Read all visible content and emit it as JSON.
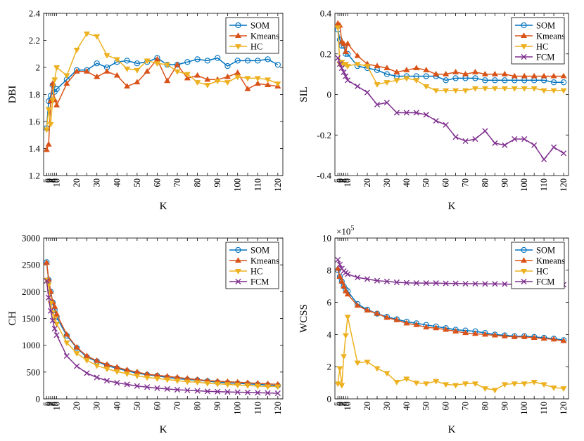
{
  "figure_title": "Clustering evaluation metrics vs K",
  "colors": {
    "SOM": "#0072BD",
    "Kmeans": "#D95319",
    "HC": "#EDB120",
    "FCM": "#7E2F8E"
  },
  "chart_data": [
    {
      "id": "dbi",
      "type": "line",
      "xlabel": "K",
      "ylabel": "DBI",
      "ylim": [
        1.2,
        2.4
      ],
      "grid": false,
      "yticks": [
        1.2,
        1.4,
        1.6,
        1.8,
        2.0,
        2.2,
        2.4
      ],
      "ytick_labels": [
        "1.2",
        "1.4",
        "1.6",
        "1.8",
        "2",
        "2.2",
        "2.4"
      ],
      "legend_position": "top-right",
      "series": [
        {
          "name": "SOM",
          "marker": "circle",
          "values": [
            1.55,
            1.75,
            1.79,
            1.87,
            1.82,
            1.84,
            1.91,
            1.98,
            1.98,
            2.03,
            2.0,
            2.04,
            2.05,
            2.03,
            2.04,
            2.07,
            2.02,
            2.02,
            2.04,
            2.06,
            2.05,
            2.07,
            2.01,
            2.05,
            2.05,
            2.05,
            2.06,
            2.02
          ]
        },
        {
          "name": "Kmeans",
          "marker": "triangle-up",
          "values": [
            1.39,
            1.43,
            1.75,
            1.88,
            1.76,
            1.72,
            1.88,
            1.97,
            1.97,
            1.93,
            1.97,
            1.94,
            1.86,
            1.89,
            1.97,
            2.06,
            1.9,
            2.02,
            1.92,
            1.94,
            1.91,
            1.91,
            1.93,
            1.96,
            1.84,
            1.88,
            1.87,
            1.86
          ]
        },
        {
          "name": "HC",
          "marker": "triangle-down",
          "values": [
            1.54,
            1.69,
            1.58,
            1.76,
            1.91,
            2.0,
            1.94,
            2.13,
            2.25,
            2.23,
            2.09,
            2.06,
            1.99,
            1.98,
            2.05,
            2.03,
            2.02,
            1.97,
            1.95,
            1.89,
            1.87,
            1.9,
            1.89,
            1.93,
            1.92,
            1.92,
            1.91,
            1.88
          ]
        }
      ]
    },
    {
      "id": "sil",
      "type": "line",
      "xlabel": "K",
      "ylabel": "SIL",
      "ylim": [
        -0.4,
        0.4
      ],
      "grid": false,
      "yticks": [
        -0.4,
        -0.2,
        0,
        0.2,
        0.4
      ],
      "ytick_labels": [
        "-0.4",
        "-0.2",
        "0",
        "0.2",
        "0.4"
      ],
      "legend_position": "top-right",
      "series": [
        {
          "name": "SOM",
          "marker": "circle",
          "values": [
            0.32,
            0.27,
            0.24,
            0.24,
            0.2,
            0.2,
            0.14,
            0.13,
            0.12,
            0.1,
            0.09,
            0.09,
            0.09,
            0.09,
            0.09,
            0.07,
            0.08,
            0.08,
            0.08,
            0.07,
            0.07,
            0.07,
            0.07,
            0.07,
            0.07,
            0.07,
            0.06,
            0.06
          ]
        },
        {
          "name": "Kmeans",
          "marker": "triangle-up",
          "values": [
            0.35,
            0.34,
            0.26,
            0.25,
            0.21,
            0.25,
            0.19,
            0.15,
            0.14,
            0.13,
            0.11,
            0.12,
            0.13,
            0.12,
            0.1,
            0.1,
            0.11,
            0.1,
            0.11,
            0.1,
            0.1,
            0.1,
            0.09,
            0.09,
            0.09,
            0.09,
            0.09,
            0.09
          ]
        },
        {
          "name": "HC",
          "marker": "triangle-down",
          "values": [
            0.33,
            0.15,
            0.16,
            0.15,
            0.15,
            0.14,
            0.15,
            0.14,
            0.05,
            0.06,
            0.07,
            0.08,
            0.07,
            0.04,
            0.02,
            0.02,
            0.02,
            0.02,
            0.03,
            0.03,
            0.03,
            0.03,
            0.03,
            0.03,
            0.03,
            0.02,
            0.02,
            0.02
          ]
        },
        {
          "name": "FCM",
          "marker": "x",
          "values": [
            0.18,
            0.15,
            0.13,
            0.11,
            0.09,
            0.07,
            0.04,
            0.01,
            -0.05,
            -0.04,
            -0.09,
            -0.09,
            -0.09,
            -0.1,
            -0.13,
            -0.15,
            -0.21,
            -0.23,
            -0.22,
            -0.18,
            -0.24,
            -0.25,
            -0.22,
            -0.22,
            -0.25,
            -0.32,
            -0.26,
            -0.29
          ]
        }
      ]
    },
    {
      "id": "ch",
      "type": "line",
      "xlabel": "K",
      "ylabel": "CH",
      "ylim": [
        0,
        3000
      ],
      "grid": false,
      "yticks": [
        0,
        500,
        1000,
        1500,
        2000,
        2500,
        3000
      ],
      "ytick_labels": [
        "0",
        "500",
        "1000",
        "1500",
        "2000",
        "2500",
        "3000"
      ],
      "legend_position": "top-right",
      "series": [
        {
          "name": "SOM",
          "marker": "circle",
          "values": [
            2550,
            2220,
            2000,
            1800,
            1650,
            1520,
            1180,
            950,
            780,
            700,
            620,
            570,
            520,
            480,
            450,
            430,
            400,
            380,
            360,
            350,
            330,
            310,
            300,
            290,
            280,
            270,
            260,
            250
          ]
        },
        {
          "name": "Kmeans",
          "marker": "triangle-up",
          "values": [
            2540,
            2230,
            2000,
            1810,
            1720,
            1580,
            1200,
            960,
            800,
            710,
            640,
            590,
            540,
            500,
            460,
            440,
            420,
            400,
            380,
            360,
            340,
            330,
            320,
            310,
            300,
            290,
            280,
            270
          ]
        },
        {
          "name": "HC",
          "marker": "triangle-down",
          "values": [
            2220,
            2130,
            1780,
            1610,
            1500,
            1400,
            1050,
            850,
            720,
            620,
            560,
            510,
            470,
            430,
            400,
            380,
            360,
            340,
            320,
            310,
            290,
            280,
            270,
            260,
            250,
            240,
            230,
            230
          ]
        },
        {
          "name": "FCM",
          "marker": "x",
          "values": [
            2200,
            1890,
            1640,
            1460,
            1310,
            1190,
            800,
            610,
            480,
            400,
            340,
            300,
            270,
            240,
            220,
            200,
            185,
            170,
            160,
            150,
            140,
            135,
            130,
            125,
            120,
            115,
            110,
            105
          ]
        }
      ]
    },
    {
      "id": "wcss",
      "type": "line",
      "xlabel": "K",
      "ylabel": "WCSS",
      "ylim": [
        0,
        10
      ],
      "grid": false,
      "y_exponent": "5",
      "yticks": [
        0,
        2,
        4,
        6,
        8,
        10
      ],
      "ytick_labels": [
        "0",
        "2",
        "4",
        "6",
        "8",
        "10"
      ],
      "legend_position": "top-right",
      "series": [
        {
          "name": "SOM",
          "marker": "circle",
          "values": [
            8.0,
            7.6,
            7.3,
            7.0,
            6.8,
            6.7,
            5.9,
            5.55,
            5.3,
            5.1,
            4.95,
            4.8,
            4.7,
            4.6,
            4.5,
            4.4,
            4.3,
            4.25,
            4.2,
            4.1,
            4.0,
            3.95,
            3.9,
            3.9,
            3.85,
            3.8,
            3.75,
            3.65
          ]
        },
        {
          "name": "Kmeans",
          "marker": "triangle-up",
          "values": [
            8.1,
            7.6,
            7.3,
            7.0,
            6.7,
            6.5,
            5.8,
            5.5,
            5.3,
            5.05,
            4.9,
            4.7,
            4.6,
            4.45,
            4.4,
            4.3,
            4.2,
            4.1,
            4.05,
            4.0,
            3.95,
            3.9,
            3.85,
            3.85,
            3.8,
            3.75,
            3.7,
            3.6
          ]
        },
        {
          "name": "HC",
          "marker": "triangle-down",
          "values": [
            0.95,
            1.9,
            0.85,
            2.65,
            3.95,
            5.1,
            2.25,
            2.3,
            1.9,
            1.6,
            1.05,
            1.25,
            1.0,
            0.95,
            1.1,
            0.9,
            0.85,
            0.95,
            0.95,
            0.65,
            0.55,
            0.9,
            0.95,
            0.95,
            1.05,
            0.9,
            0.7,
            0.65
          ]
        },
        {
          "name": "FCM",
          "marker": "x",
          "values": [
            8.65,
            8.35,
            8.1,
            7.95,
            7.85,
            7.75,
            7.55,
            7.45,
            7.35,
            7.3,
            7.25,
            7.22,
            7.2,
            7.2,
            7.2,
            7.18,
            7.18,
            7.16,
            7.16,
            7.15,
            7.15,
            7.14,
            7.12,
            7.12,
            7.12,
            7.1,
            7.1,
            7.1
          ]
        }
      ]
    }
  ],
  "x_categories": [
    "5",
    "6",
    "7",
    "8",
    "9",
    "10",
    "15",
    "20",
    "25",
    "30",
    "35",
    "40",
    "45",
    "50",
    "55",
    "60",
    "65",
    "70",
    "75",
    "80",
    "85",
    "90",
    "95",
    "100",
    "105",
    "110",
    "115",
    "120"
  ],
  "x_tick_labels_shown": [
    "5",
    "6",
    "7",
    "8",
    "9",
    "10",
    "20",
    "30",
    "40",
    "50",
    "60",
    "70",
    "80",
    "90",
    "100",
    "110",
    "120"
  ]
}
